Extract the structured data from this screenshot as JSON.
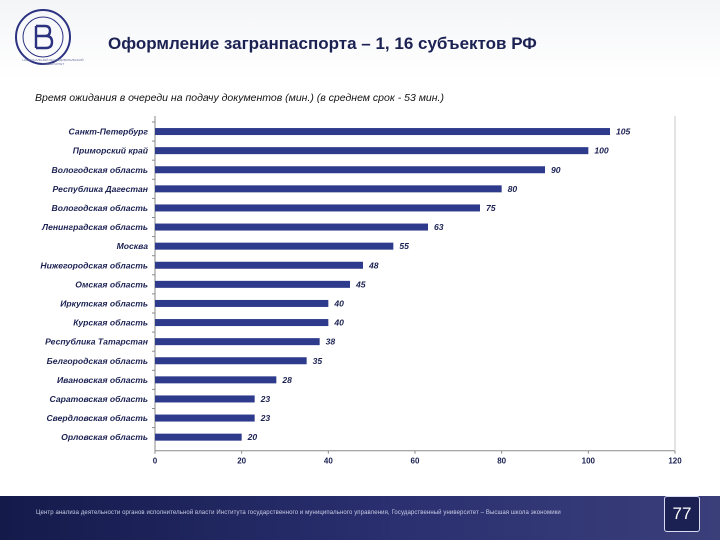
{
  "header": {
    "title": "Оформление загранпаспорта – 1, 16 субъектов РФ",
    "logo_caption": "НАЦИОНАЛЬНЫЙ ИССЛЕДОВАТЕЛЬСКИЙ УНИВЕРСИТЕТ"
  },
  "subtitle": "Время ожидания в очереди на подачу документов (мин.) (в среднем срок - 53 мин.)",
  "chart_data": {
    "type": "bar",
    "orientation": "horizontal",
    "title": "Время ожидания в очереди на подачу документов (мин.) (в среднем срок - 53 мин.)",
    "categories": [
      "Санкт-Петербург",
      "Приморский край",
      "Вологодская область",
      "Республика Дагестан",
      "Вологодская область",
      "Ленинградская область",
      "Москва",
      "Нижегородская область",
      "Омская область",
      "Иркутская область",
      "Курская область",
      "Республика Татарстан",
      "Белгородская область",
      "Ивановская область",
      "Саратовская область",
      "Свердловская область",
      "Орловская область"
    ],
    "values": [
      105,
      100,
      90,
      80,
      75,
      63,
      55,
      48,
      45,
      40,
      40,
      38,
      35,
      28,
      23,
      23,
      20
    ],
    "xlim": [
      0,
      120
    ],
    "xticks": [
      "0",
      "20",
      "40",
      "60",
      "80",
      "100",
      "120"
    ],
    "xlabel": "",
    "ylabel": "",
    "grid": false,
    "bar_color": "#2e3a8c"
  },
  "footer": {
    "text": "Центр анализа деятельности органов исполнительной власти Института государственного и муниципального управления, Государственный университет – Высшая школа экономики",
    "page_number": "77"
  }
}
